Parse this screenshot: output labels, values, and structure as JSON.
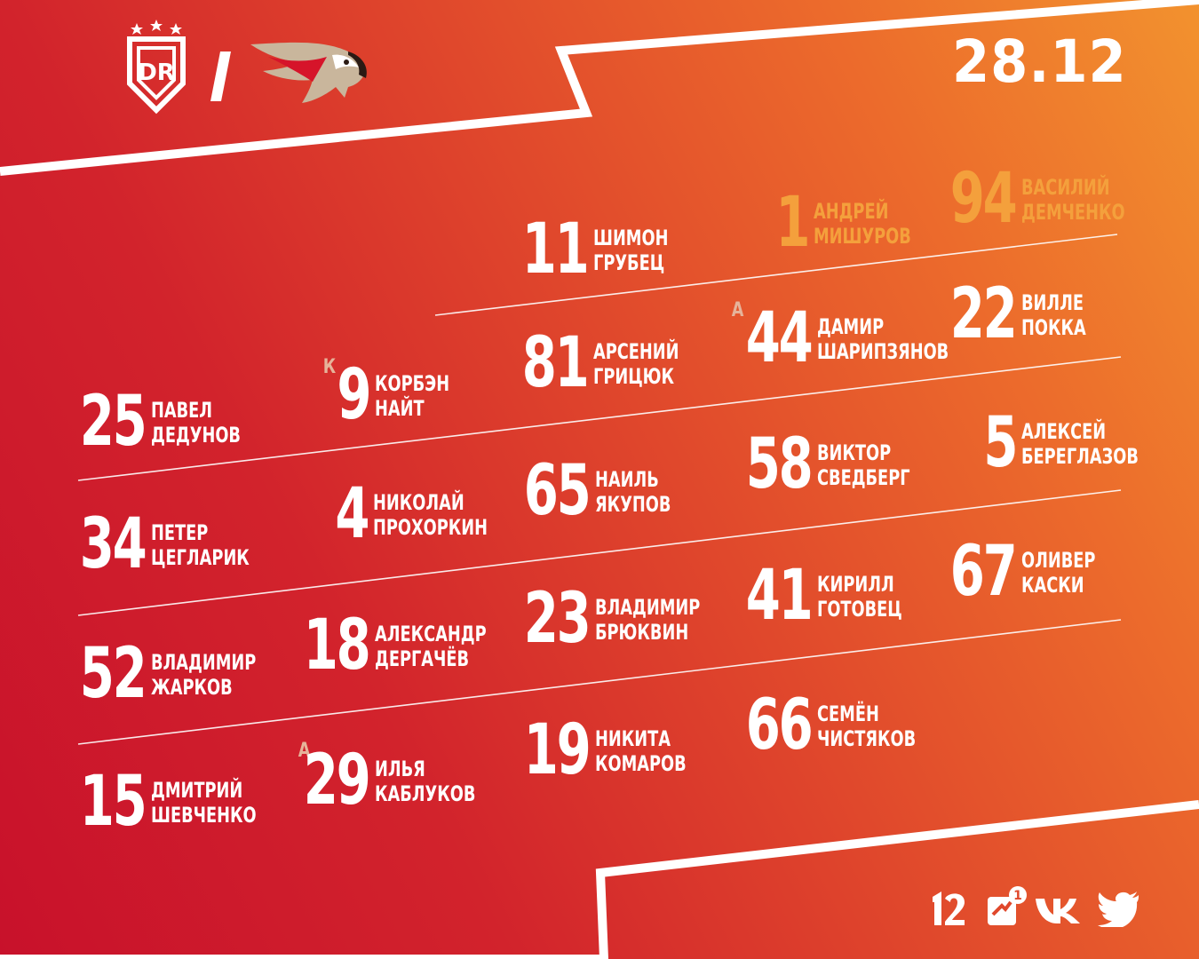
{
  "date": "28.12",
  "colors": {
    "red": "#c8112b",
    "orange": "#f2922e",
    "goalie_gold": "#f4a03c",
    "role_mark": "#e6b39a",
    "white": "#ffffff"
  },
  "team_logos": [
    "dinamo-riga-logo",
    "avangard-logo"
  ],
  "goalies": [
    {
      "number": "1",
      "first": "АНДРЕЙ",
      "last": "МИШУРОВ"
    },
    {
      "number": "94",
      "first": "ВАСИЛИЙ",
      "last": "ДЕМЧЕНКО"
    }
  ],
  "players": [
    {
      "number": "11",
      "first": "ШИМОН",
      "last": "ГРУБЕЦ"
    },
    {
      "number": "81",
      "first": "АРСЕНИЙ",
      "last": "ГРИЦЮК"
    },
    {
      "number": "44",
      "first": "ДАМИР",
      "last": "ШАРИПЗЯНОВ",
      "mark": "А"
    },
    {
      "number": "22",
      "first": "ВИЛЛЕ",
      "last": "ПОККА"
    },
    {
      "number": "25",
      "first": "ПАВЕЛ",
      "last": "ДЕДУНОВ"
    },
    {
      "number": "9",
      "first": "КОРБЭН",
      "last": "НАЙТ",
      "mark": "К"
    },
    {
      "number": "65",
      "first": "НАИЛЬ",
      "last": "ЯКУПОВ"
    },
    {
      "number": "58",
      "first": "ВИКТОР",
      "last": "СВЕДБЕРГ"
    },
    {
      "number": "5",
      "first": "АЛЕКСЕЙ",
      "last": "БЕРЕГЛАЗОВ"
    },
    {
      "number": "34",
      "first": "ПЕТЕР",
      "last": "ЦЕГЛАРИК"
    },
    {
      "number": "4",
      "first": "НИКОЛАЙ",
      "last": "ПРОХОРКИН"
    },
    {
      "number": "23",
      "first": "ВЛАДИМИР",
      "last": "БРЮКВИН"
    },
    {
      "number": "41",
      "first": "КИРИЛЛ",
      "last": "ГОТОВЕЦ"
    },
    {
      "number": "67",
      "first": "ОЛИВЕР",
      "last": "КАСКИ"
    },
    {
      "number": "52",
      "first": "ВЛАДИМИР",
      "last": "ЖАРКОВ"
    },
    {
      "number": "18",
      "first": "АЛЕКСАНДР",
      "last": "ДЕРГАЧЁВ"
    },
    {
      "number": "19",
      "first": "НИКИТА",
      "last": "КОМАРОВ"
    },
    {
      "number": "66",
      "first": "СЕМЁН",
      "last": "ЧИСТЯКОВ"
    },
    {
      "number": "15",
      "first": "ДМИТРИЙ",
      "last": "ШЕВЧЕНКО"
    },
    {
      "number": "29",
      "first": "ИЛЬЯ",
      "last": "КАБЛУКОВ",
      "mark": "А"
    }
  ],
  "social": [
    "twelve-icon",
    "ok-icon",
    "vk-icon",
    "twitter-icon"
  ],
  "social_badge": "1"
}
